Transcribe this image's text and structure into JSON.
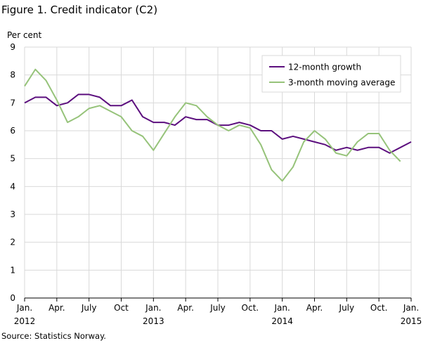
{
  "figure": {
    "title": "Figure 1. Credit indicator (C2)",
    "source": "Source: Statistics Norway."
  },
  "chart_data": {
    "type": "line",
    "ylabel": "Per cent",
    "ylim": [
      0,
      9
    ],
    "yticks": [
      0,
      1,
      2,
      3,
      4,
      5,
      6,
      7,
      8,
      9
    ],
    "x": [
      "2012-01",
      "2012-02",
      "2012-03",
      "2012-04",
      "2012-05",
      "2012-06",
      "2012-07",
      "2012-08",
      "2012-09",
      "2012-10",
      "2012-11",
      "2012-12",
      "2013-01",
      "2013-02",
      "2013-03",
      "2013-04",
      "2013-05",
      "2013-06",
      "2013-07",
      "2013-08",
      "2013-09",
      "2013-10",
      "2013-11",
      "2013-12",
      "2014-01",
      "2014-02",
      "2014-03",
      "2014-04",
      "2014-05",
      "2014-06",
      "2014-07",
      "2014-08",
      "2014-09",
      "2014-10",
      "2014-11",
      "2014-12",
      "2015-01"
    ],
    "xtick_labels": [
      {
        "index": 0,
        "label": "Jan.",
        "year": "2012"
      },
      {
        "index": 3,
        "label": "Apr.",
        "year": ""
      },
      {
        "index": 6,
        "label": "July",
        "year": ""
      },
      {
        "index": 9,
        "label": "Oct",
        "year": ""
      },
      {
        "index": 12,
        "label": "Jan.",
        "year": "2013"
      },
      {
        "index": 15,
        "label": "Apr.",
        "year": ""
      },
      {
        "index": 18,
        "label": "July",
        "year": ""
      },
      {
        "index": 21,
        "label": "Oct.",
        "year": ""
      },
      {
        "index": 24,
        "label": "Jan.",
        "year": "2014"
      },
      {
        "index": 27,
        "label": "Apr.",
        "year": ""
      },
      {
        "index": 30,
        "label": "July",
        "year": ""
      },
      {
        "index": 33,
        "label": "Oct.",
        "year": ""
      },
      {
        "index": 36,
        "label": "Jan.",
        "year": "2015"
      }
    ],
    "grid": true,
    "legend": "top-right",
    "series": [
      {
        "name": "12-month growth",
        "color": "#5c0f7e",
        "values": [
          7.0,
          7.2,
          7.2,
          6.9,
          7.0,
          7.3,
          7.3,
          7.2,
          6.9,
          6.9,
          7.1,
          6.5,
          6.3,
          6.3,
          6.2,
          6.5,
          6.4,
          6.4,
          6.2,
          6.2,
          6.3,
          6.2,
          6.0,
          6.0,
          5.7,
          5.8,
          5.7,
          5.6,
          5.5,
          5.3,
          5.4,
          5.3,
          5.4,
          5.4,
          5.2,
          5.4,
          5.6
        ]
      },
      {
        "name": "3-month moving average",
        "color": "#96c37a",
        "values": [
          7.6,
          8.2,
          7.8,
          7.1,
          6.3,
          6.5,
          6.8,
          6.9,
          6.7,
          6.5,
          6.0,
          5.8,
          5.3,
          5.9,
          6.5,
          7.0,
          6.9,
          6.5,
          6.2,
          6.0,
          6.2,
          6.1,
          5.5,
          4.6,
          4.2,
          4.7,
          5.6,
          6.0,
          5.7,
          5.2,
          5.1,
          5.6,
          5.9,
          5.9,
          5.3,
          4.9,
          null
        ]
      }
    ]
  }
}
